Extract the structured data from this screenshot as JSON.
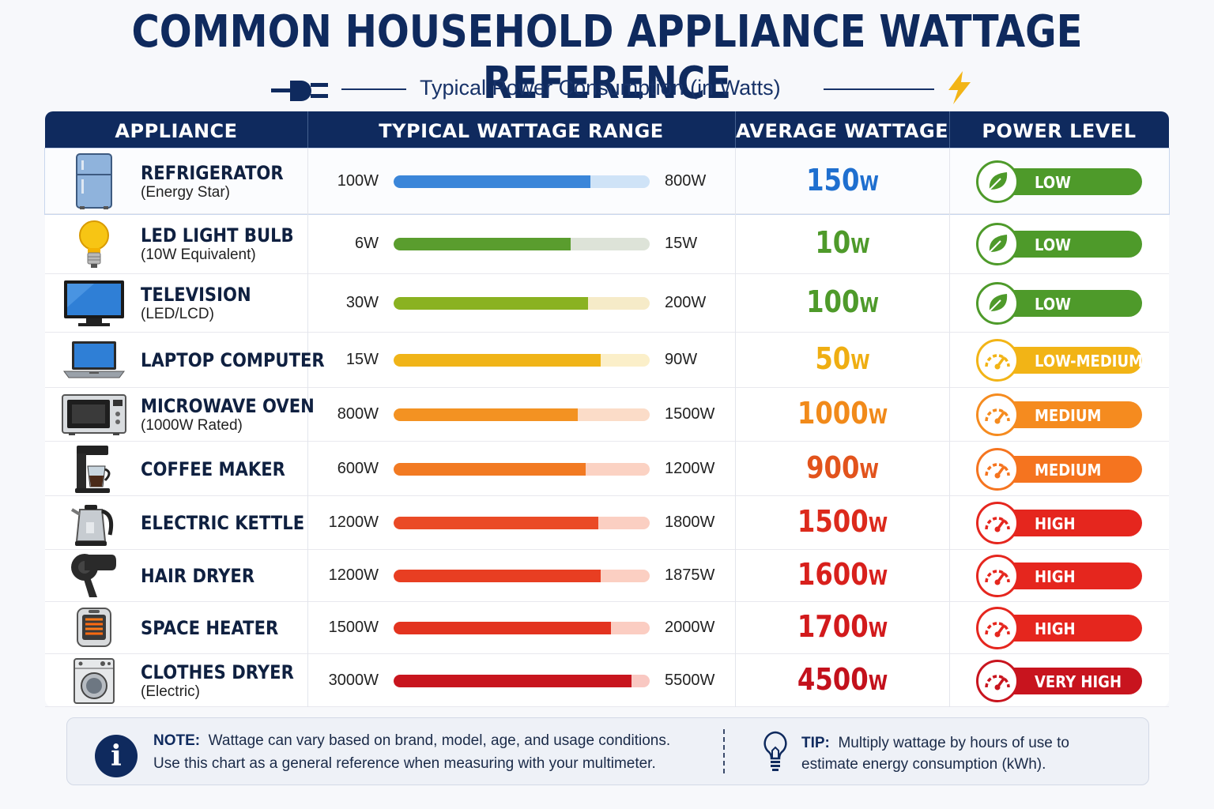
{
  "title": "COMMON HOUSEHOLD APPLIANCE WATTAGE REFERENCE",
  "subtitle": "Typical Power Consumption (in Watts)",
  "headers": {
    "appliance": "APPLIANCE",
    "range": "TYPICAL WATTAGE RANGE",
    "average": "AVERAGE WATTAGE",
    "level": "POWER LEVEL"
  },
  "chart_data": {
    "type": "table",
    "columns": [
      "APPLIANCE",
      "TYPICAL WATTAGE RANGE",
      "AVERAGE WATTAGE",
      "POWER LEVEL"
    ],
    "rows": [
      {
        "name": "REFRIGERATOR",
        "sub": "(Energy Star)",
        "min_label": "100W",
        "max_label": "800W",
        "min": 100,
        "max": 800,
        "avg_num": "150",
        "avg_unit": "W",
        "average": 150,
        "level": "LOW",
        "fill": 0.77,
        "color": "#3b86d9",
        "track": "#cfe3f7",
        "avg_color": "#1f6fcf",
        "pill": "#4e9a2a",
        "icon": "refrigerator-icon",
        "level_icon": "leaf-icon"
      },
      {
        "name": "LED LIGHT BULB",
        "sub": "(10W Equivalent)",
        "min_label": "6W",
        "max_label": "15W",
        "min": 6,
        "max": 15,
        "avg_num": "10",
        "avg_unit": "W",
        "average": 10,
        "level": "LOW",
        "fill": 0.69,
        "color": "#5a9d2e",
        "track": "#dde3d8",
        "avg_color": "#4e9a2a",
        "pill": "#4e9a2a",
        "icon": "light-bulb-icon",
        "level_icon": "leaf-icon"
      },
      {
        "name": "TELEVISION",
        "sub": "(LED/LCD)",
        "min_label": "30W",
        "max_label": "200W",
        "min": 30,
        "max": 200,
        "avg_num": "100",
        "avg_unit": "W",
        "average": 100,
        "level": "LOW",
        "fill": 0.76,
        "color": "#8ab221",
        "track": "#f6ebc8",
        "avg_color": "#4e9a2a",
        "pill": "#4e9a2a",
        "icon": "television-icon",
        "level_icon": "leaf-icon"
      },
      {
        "name": "LAPTOP COMPUTER",
        "sub": "",
        "min_label": "15W",
        "max_label": "90W",
        "min": 15,
        "max": 90,
        "avg_num": "50",
        "avg_unit": "W",
        "average": 50,
        "level": "LOW-MEDIUM",
        "fill": 0.81,
        "color": "#f0b418",
        "track": "#fbefc9",
        "avg_color": "#efae12",
        "pill": "#f2b416",
        "icon": "laptop-icon",
        "level_icon": "gauge-icon"
      },
      {
        "name": "MICROWAVE OVEN",
        "sub": "(1000W Rated)",
        "min_label": "800W",
        "max_label": "1500W",
        "min": 800,
        "max": 1500,
        "avg_num": "1000",
        "avg_unit": "W",
        "average": 1000,
        "level": "MEDIUM",
        "fill": 0.72,
        "color": "#f39222",
        "track": "#fbdcc8",
        "avg_color": "#f18a1a",
        "pill": "#f58b1f",
        "icon": "microwave-icon",
        "level_icon": "gauge-icon"
      },
      {
        "name": "COFFEE MAKER",
        "sub": "",
        "min_label": "600W",
        "max_label": "1200W",
        "min": 600,
        "max": 1200,
        "avg_num": "900",
        "avg_unit": "W",
        "average": 900,
        "level": "MEDIUM",
        "fill": 0.75,
        "color": "#f27a22",
        "track": "#fbd2c3",
        "avg_color": "#e2531c",
        "pill": "#f5741f",
        "icon": "coffee-maker-icon",
        "level_icon": "gauge-icon"
      },
      {
        "name": "ELECTRIC KETTLE",
        "sub": "",
        "min_label": "1200W",
        "max_label": "1800W",
        "min": 1200,
        "max": 1800,
        "avg_num": "1500",
        "avg_unit": "W",
        "average": 1500,
        "level": "HIGH",
        "fill": 0.8,
        "color": "#ea4a26",
        "track": "#fbcfc2",
        "avg_color": "#dc2a1c",
        "pill": "#e5261e",
        "icon": "kettle-icon",
        "level_icon": "gauge-icon"
      },
      {
        "name": "HAIR DRYER",
        "sub": "",
        "min_label": "1200W",
        "max_label": "1875W",
        "min": 1200,
        "max": 1875,
        "avg_num": "1600",
        "avg_unit": "W",
        "average": 1600,
        "level": "HIGH",
        "fill": 0.81,
        "color": "#e83e22",
        "track": "#fbcfc2",
        "avg_color": "#d8201c",
        "pill": "#e5261e",
        "icon": "hair-dryer-icon",
        "level_icon": "gauge-icon"
      },
      {
        "name": "SPACE HEATER",
        "sub": "",
        "min_label": "1500W",
        "max_label": "2000W",
        "min": 1500,
        "max": 2000,
        "avg_num": "1700",
        "avg_unit": "W",
        "average": 1700,
        "level": "HIGH",
        "fill": 0.85,
        "color": "#e3331f",
        "track": "#fbcdc2",
        "avg_color": "#d21a1c",
        "pill": "#e5261e",
        "icon": "space-heater-icon",
        "level_icon": "gauge-icon"
      },
      {
        "name": "CLOTHES DRYER",
        "sub": "(Electric)",
        "min_label": "3000W",
        "max_label": "5500W",
        "min": 3000,
        "max": 5500,
        "avg_num": "4500",
        "avg_unit": "W",
        "average": 4500,
        "level": "VERY HIGH",
        "fill": 0.93,
        "color": "#c8151e",
        "track": "#f9c8c2",
        "avg_color": "#c3111c",
        "pill": "#c8141e",
        "icon": "clothes-dryer-icon",
        "level_icon": "gauge-icon"
      }
    ]
  },
  "note": {
    "label": "NOTE:",
    "line1": "Wattage can vary based on brand, model, age, and usage conditions.",
    "line2": "Use this chart as a general reference when measuring with your multimeter.",
    "icon": "info-icon"
  },
  "tip": {
    "label": "TIP:",
    "line1": "Multiply wattage by hours of use to",
    "line2": "estimate energy consumption (kWh).",
    "icon": "light-bulb-outline-icon"
  }
}
